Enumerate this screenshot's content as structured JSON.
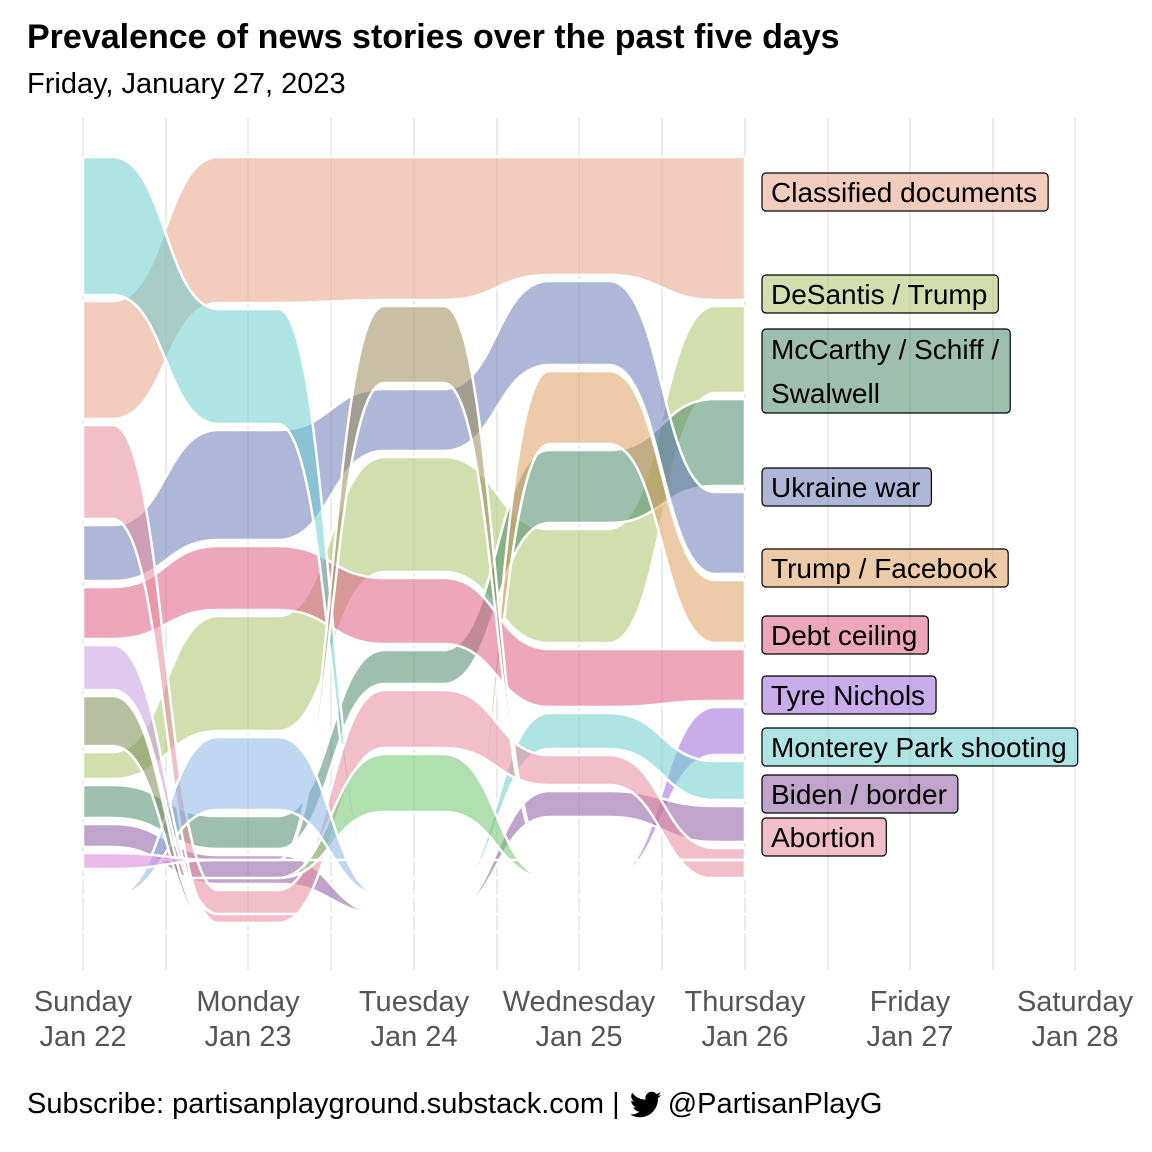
{
  "chart_data": {
    "type": "area",
    "title": "Prevalence of news stories over the past five days",
    "subtitle": "Friday, January 27, 2023",
    "x_categories": [
      {
        "day": "Sunday",
        "date": "Jan 22"
      },
      {
        "day": "Monday",
        "date": "Jan 23"
      },
      {
        "day": "Tuesday",
        "date": "Jan 24"
      },
      {
        "day": "Wednesday",
        "date": "Jan 25"
      },
      {
        "day": "Thursday",
        "date": "Jan 26"
      },
      {
        "day": "Friday",
        "date": "Jan 27"
      },
      {
        "day": "Saturday",
        "date": "Jan 28"
      }
    ],
    "grid": true,
    "legend_placement": "right of last data day",
    "series": [
      {
        "name": "Classified documents",
        "color": "#E8A487",
        "values": [
          118,
          146,
          143,
          118,
          143
        ],
        "rank": [
          2,
          1,
          1,
          1,
          1
        ]
      },
      {
        "name": "DeSantis / Trump",
        "color": "#A9C46A",
        "values": [
          27,
          115,
          115,
          114,
          87
        ],
        "rank": [
          8,
          5,
          5,
          5,
          2
        ]
      },
      {
        "name": "McCarthy / Schiff / Swalwell",
        "color": "#4E8A6A",
        "values": [
          33,
          33,
          34,
          73,
          87
        ],
        "rank": [
          9,
          7,
          7,
          4,
          3
        ]
      },
      {
        "name": "Ukraine war",
        "color": "#6C7CB6",
        "values": [
          56,
          110,
          62,
          84,
          82
        ],
        "rank": [
          4,
          3,
          4,
          2,
          4
        ]
      },
      {
        "name": "Trump / Facebook",
        "color": "#E0A060",
        "values": [
          0,
          0,
          0,
          73,
          63
        ],
        "rank": [
          null,
          null,
          null,
          3,
          5
        ]
      },
      {
        "name": "Debt ceiling",
        "color": "#DC5F83",
        "values": [
          52,
          64,
          66,
          58,
          52
        ],
        "rank": [
          5,
          4,
          6,
          6,
          6
        ]
      },
      {
        "name": "Tyre Nichols",
        "color": "#9C6ADA",
        "values": [
          0,
          0,
          0,
          0,
          48
        ],
        "rank": [
          null,
          null,
          null,
          null,
          7
        ]
      },
      {
        "name": "Monterey Park shooting",
        "color": "#6CCECE",
        "values": [
          138,
          115,
          0,
          36,
          39
        ],
        "rank": [
          1,
          2,
          null,
          8,
          8
        ]
      },
      {
        "name": "Biden / border",
        "color": "#8E5AA2",
        "values": [
          23,
          29,
          0,
          26,
          36
        ],
        "rank": [
          10,
          8,
          null,
          10,
          9
        ]
      },
      {
        "name": "Abortion",
        "color": "#E88A9A",
        "values": [
          94,
          33,
          58,
          30,
          31
        ],
        "rank": [
          3,
          9,
          8,
          9,
          10
        ]
      },
      {
        "name": "",
        "color": "#9A8A5A",
        "values": [
          0,
          0,
          77,
          0,
          0
        ],
        "rank": [
          null,
          null,
          2,
          null,
          null
        ]
      },
      {
        "name": "",
        "color": "#6FC66F",
        "values": [
          0,
          0,
          58,
          0,
          0
        ],
        "rank": [
          null,
          null,
          9,
          null,
          null
        ]
      },
      {
        "name": "",
        "color": "#8AB6E6",
        "values": [
          0,
          73,
          0,
          0,
          0
        ],
        "rank": [
          null,
          6,
          null,
          null,
          null
        ]
      },
      {
        "name": "",
        "color": "#C79BE0",
        "values": [
          45,
          0,
          0,
          0,
          0
        ],
        "rank": [
          6,
          null,
          null,
          null,
          null
        ]
      },
      {
        "name": "",
        "color": "#7A8A52",
        "values": [
          50,
          0,
          0,
          0,
          0
        ],
        "rank": [
          7,
          null,
          null,
          null,
          null
        ]
      },
      {
        "name": "",
        "color": "#D77FD9",
        "values": [
          16,
          0,
          0,
          0,
          0
        ],
        "rank": [
          11,
          null,
          null,
          null,
          null
        ]
      }
    ]
  },
  "footer": {
    "text_left": "Subscribe: partisanplayground.substack.com |",
    "icon": "twitter-bird-icon",
    "handle": "@PartisanPlayG"
  }
}
